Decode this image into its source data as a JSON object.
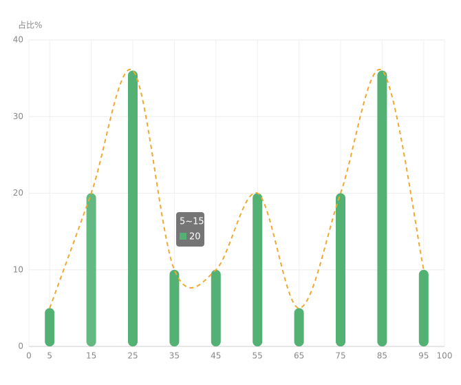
{
  "chart_data": {
    "type": "bar",
    "y_axis_name": "占比%",
    "x": [
      5,
      15,
      25,
      35,
      45,
      55,
      65,
      75,
      85,
      95
    ],
    "values": [
      5,
      20,
      36,
      10,
      10,
      20,
      5,
      20,
      36,
      10
    ],
    "color": "#52b173",
    "line_color": "#f0a830",
    "xlim": [
      0,
      100
    ],
    "xticks": [
      0,
      5,
      15,
      25,
      35,
      45,
      55,
      65,
      75,
      85,
      95,
      100
    ],
    "ylim": [
      0,
      40
    ],
    "yticks": [
      0,
      10,
      20,
      30,
      40
    ],
    "grid": true,
    "tooltip_title": "5~15"
  }
}
